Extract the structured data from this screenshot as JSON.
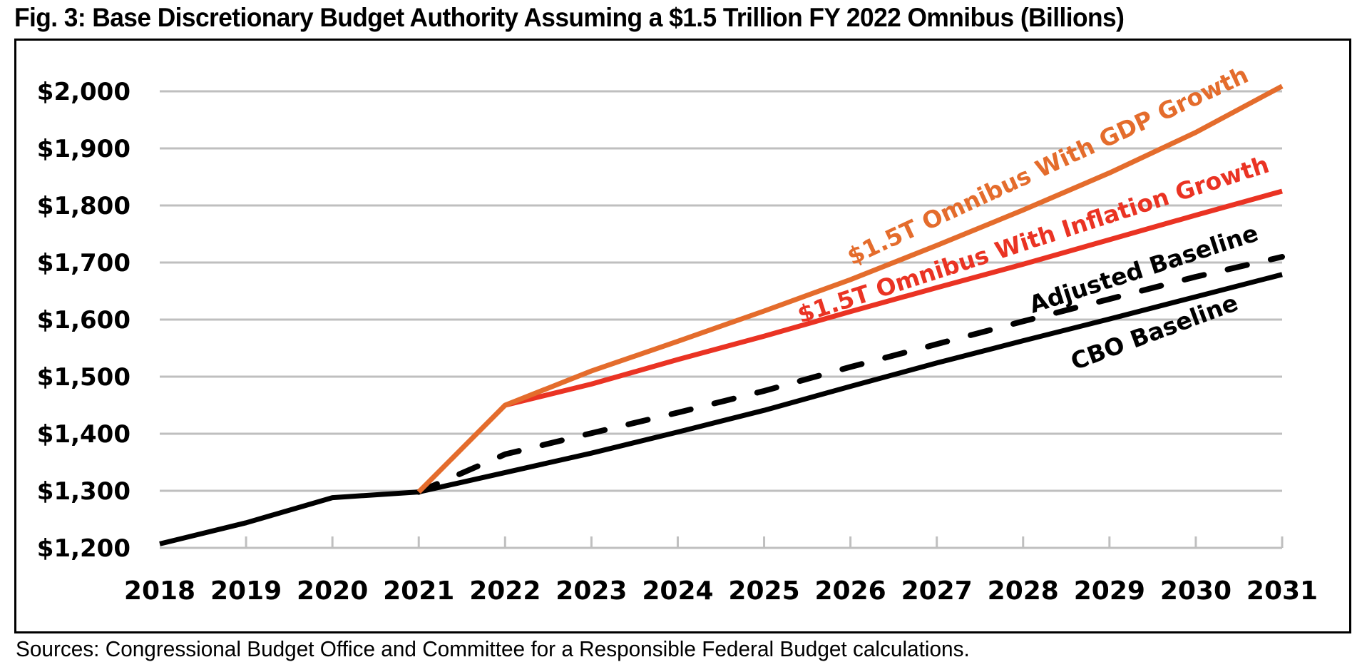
{
  "title": "Fig. 3: Base Discretionary Budget Authority Assuming a $1.5 Trillion FY 2022 Omnibus (Billions)",
  "source": "Sources: Congressional Budget Office and Committee for a Responsible Federal Budget calculations.",
  "chart_data": {
    "type": "line",
    "title": "Fig. 3: Base Discretionary Budget Authority Assuming a $1.5 Trillion FY 2022 Omnibus (Billions)",
    "xlabel": "",
    "ylabel": "",
    "x": [
      2018,
      2019,
      2020,
      2021,
      2022,
      2023,
      2024,
      2025,
      2026,
      2027,
      2028,
      2029,
      2030,
      2031
    ],
    "x_tick_labels": [
      "2018",
      "2019",
      "2020",
      "2021",
      "2022",
      "2023",
      "2024",
      "2025",
      "2026",
      "2027",
      "2028",
      "2029",
      "2030",
      "2031"
    ],
    "ylim": [
      1200,
      2000
    ],
    "y_ticks": [
      1200,
      1300,
      1400,
      1500,
      1600,
      1700,
      1800,
      1900,
      2000
    ],
    "y_tick_labels": [
      "$1,200",
      "$1,300",
      "$1,400",
      "$1,500",
      "$1,600",
      "$1,700",
      "$1,800",
      "$1,900",
      "$2,000"
    ],
    "grid": "horizontal",
    "legend": "inline labels",
    "series": [
      {
        "name": "$1.5T Omnibus With GDP Growth",
        "color": "#E46C2C",
        "style": "solid",
        "x": [
          2021,
          2022,
          2023,
          2024,
          2025,
          2026,
          2027,
          2028,
          2029,
          2030,
          2031
        ],
        "values": [
          1298,
          1450,
          1510,
          1562,
          1615,
          1670,
          1730,
          1792,
          1857,
          1928,
          2009
        ]
      },
      {
        "name": "$1.5T Omnibus With Inflation Growth",
        "color": "#EA3323",
        "style": "solid",
        "x": [
          2022,
          2023,
          2024,
          2025,
          2026,
          2027,
          2028,
          2029,
          2030,
          2031
        ],
        "values": [
          1450,
          1487,
          1530,
          1571,
          1614,
          1656,
          1697,
          1740,
          1783,
          1825
        ]
      },
      {
        "name": "Adjusted Baseline",
        "color": "#000000",
        "style": "dashed",
        "x": [
          2021,
          2022,
          2023,
          2024,
          2025,
          2026,
          2027,
          2028,
          2029,
          2030,
          2031
        ],
        "values": [
          1298,
          1364,
          1401,
          1437,
          1475,
          1517,
          1557,
          1597,
          1636,
          1675,
          1710
        ]
      },
      {
        "name": "CBO Baseline",
        "color": "#000000",
        "style": "solid",
        "x": [
          2018,
          2019,
          2020,
          2021,
          2022,
          2023,
          2024,
          2025,
          2026,
          2027,
          2028,
          2029,
          2030,
          2031
        ],
        "values": [
          1207,
          1244,
          1288,
          1298,
          1332,
          1366,
          1403,
          1441,
          1483,
          1524,
          1563,
          1601,
          1640,
          1679
        ]
      }
    ],
    "annotations": [
      {
        "text": "$1.5T Omnibus With GDP Growth",
        "series": 0
      },
      {
        "text": "$1.5T Omnibus With Inflation Growth",
        "series": 1
      },
      {
        "text": "Adjusted Baseline",
        "series": 2
      },
      {
        "text": "CBO Baseline",
        "series": 3
      }
    ]
  }
}
